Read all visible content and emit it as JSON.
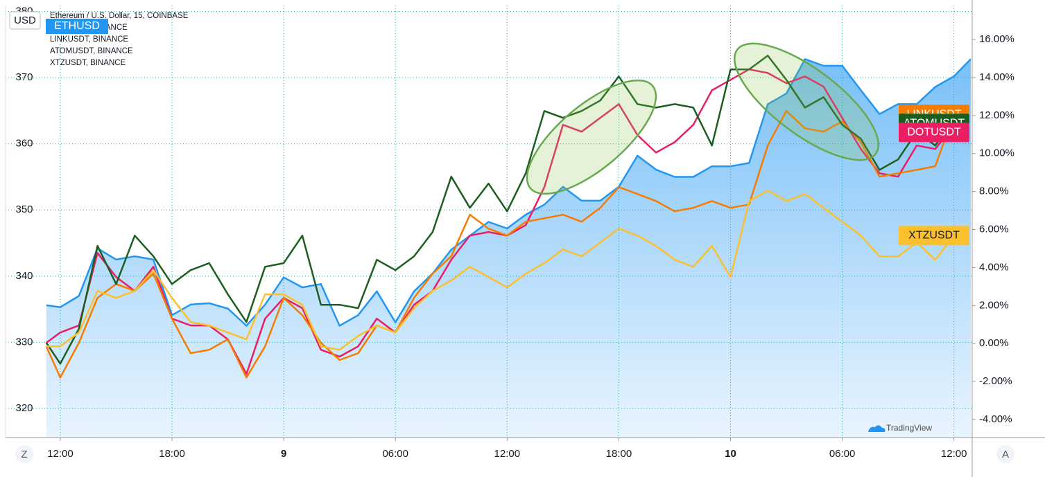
{
  "chart_data": {
    "type": "line",
    "ylabel": "USD",
    "ui": {
      "left_button": "Z",
      "right_button": "A",
      "watermark": "TradingView"
    },
    "x": [
      -0.75,
      0,
      1,
      2,
      3,
      4,
      5,
      6,
      7,
      8,
      9,
      10,
      11,
      12,
      13,
      14,
      15,
      16,
      17,
      18,
      19,
      20,
      21,
      22,
      23,
      24,
      25,
      26,
      27,
      28,
      29,
      30,
      31,
      32,
      33,
      34,
      35,
      36,
      37,
      38,
      39,
      40,
      41,
      42,
      43,
      44,
      45,
      46,
      47,
      48,
      48.9
    ],
    "xlim": [
      -2.94,
      48.98
    ],
    "xticks": [
      {
        "value": 0,
        "label": "12:00"
      },
      {
        "value": 6,
        "label": "18:00"
      },
      {
        "value": 12,
        "label": "9"
      },
      {
        "value": 18,
        "label": "06:00"
      },
      {
        "value": 24,
        "label": "12:00"
      },
      {
        "value": 30,
        "label": "18:00"
      },
      {
        "value": 36,
        "label": "10"
      },
      {
        "value": 42,
        "label": "06:00"
      },
      {
        "value": 48,
        "label": "12:00"
      }
    ],
    "ylim": [
      315.6,
      380.9
    ],
    "yticks": [
      320,
      330,
      340,
      350,
      360,
      370,
      380
    ],
    "y2lim": [
      -4.95,
      17.79
    ],
    "y2ticks": [
      {
        "value": -4,
        "label": "-4.00%"
      },
      {
        "value": -2,
        "label": "-2.00%"
      },
      {
        "value": 0,
        "label": "0.00%"
      },
      {
        "value": 2,
        "label": "2.00%"
      },
      {
        "value": 4,
        "label": "4.00%"
      },
      {
        "value": 6,
        "label": "6.00%"
      },
      {
        "value": 8,
        "label": "8.00%"
      },
      {
        "value": 10,
        "label": "10.00%"
      },
      {
        "value": 12,
        "label": "12.00%"
      },
      {
        "value": 14,
        "label": "14.00%"
      },
      {
        "value": 16,
        "label": "16.00%"
      }
    ],
    "grid": true,
    "series": [
      {
        "name": "ETHUSD",
        "legend": "Ethereum / U.S. Dollar, 15, COINBASE",
        "color": "#2196f3",
        "area": true,
        "values": [
          335.6,
          335.3,
          337.0,
          344.2,
          342.5,
          343.0,
          342.5,
          334.1,
          335.7,
          335.9,
          335.1,
          332.5,
          335.7,
          339.8,
          338.3,
          338.8,
          332.5,
          334.1,
          337.7,
          333.0,
          337.7,
          340.4,
          344.0,
          346.1,
          348.2,
          347.2,
          349.3,
          350.8,
          353.5,
          351.4,
          351.4,
          353.5,
          358.2,
          356.1,
          355.0,
          355.0,
          356.6,
          356.6,
          357.1,
          366.0,
          367.6,
          372.8,
          371.8,
          371.8,
          368.1,
          364.5,
          366.0,
          366.0,
          368.6,
          370.2,
          372.8
        ]
      },
      {
        "name": "DOTUSDT",
        "legend": "DOTUSDT, BINANCE",
        "color": "#e91e63",
        "axis": "y2",
        "values": [
          0.04,
          0.58,
          0.95,
          4.77,
          3.5,
          2.77,
          4.04,
          1.31,
          0.95,
          0.95,
          0.22,
          -1.6,
          1.31,
          2.4,
          1.86,
          -0.33,
          -0.69,
          -0.15,
          1.31,
          0.58,
          2.04,
          2.77,
          4.41,
          5.68,
          5.87,
          5.68,
          6.23,
          8.23,
          11.51,
          11.15,
          11.88,
          12.6,
          10.97,
          10.05,
          10.6,
          11.51,
          13.33,
          13.88,
          14.43,
          14.24,
          13.7,
          14.06,
          13.52,
          11.88,
          10.24,
          8.96,
          8.78,
          10.42,
          10.24,
          11.51,
          null
        ]
      },
      {
        "name": "LINKUSDT",
        "legend": "LINKUSDT, BINANCE",
        "color": "#f57c00",
        "axis": "y2",
        "values": [
          -0.15,
          -1.79,
          0.04,
          2.4,
          3.13,
          2.77,
          3.68,
          1.31,
          -0.51,
          -0.33,
          0.22,
          -1.79,
          -0.15,
          2.4,
          1.49,
          0.04,
          -0.87,
          -0.51,
          0.95,
          0.58,
          2.4,
          3.68,
          4.59,
          6.78,
          6.05,
          5.68,
          6.41,
          6.59,
          6.78,
          6.41,
          7.14,
          8.23,
          7.87,
          7.5,
          6.96,
          7.14,
          7.5,
          7.14,
          7.32,
          10.42,
          12.24,
          11.33,
          11.15,
          11.69,
          10.6,
          8.78,
          8.96,
          9.14,
          9.33,
          12.06,
          null
        ]
      },
      {
        "name": "ATOMUSDT",
        "legend": "ATOMUSDT, BINANCE",
        "color": "#1b5e20",
        "axis": "y2",
        "values": [
          0.04,
          -1.06,
          0.77,
          5.14,
          3.13,
          5.68,
          4.59,
          3.13,
          3.86,
          4.23,
          2.59,
          1.13,
          4.04,
          4.23,
          5.68,
          2.04,
          2.04,
          1.86,
          4.41,
          3.86,
          4.59,
          5.87,
          8.78,
          7.14,
          8.42,
          6.96,
          8.96,
          12.24,
          11.88,
          12.24,
          12.79,
          14.06,
          12.6,
          12.42,
          12.6,
          12.42,
          10.42,
          14.43,
          14.43,
          15.15,
          13.88,
          12.42,
          12.97,
          11.51,
          10.78,
          9.14,
          9.69,
          11.15,
          10.42,
          11.88,
          null
        ]
      },
      {
        "name": "XTZUSDT",
        "legend": "XTZUSDT, BINANCE",
        "color": "#fbc02d",
        "axis": "y2",
        "values": [
          -0.15,
          -0.15,
          0.58,
          2.77,
          2.4,
          2.77,
          3.86,
          2.4,
          1.13,
          0.95,
          0.58,
          0.22,
          2.59,
          2.59,
          2.04,
          -0.15,
          -0.33,
          0.4,
          0.95,
          0.58,
          1.86,
          2.77,
          3.32,
          4.04,
          3.5,
          2.95,
          3.68,
          4.23,
          4.95,
          4.59,
          5.32,
          6.05,
          5.68,
          5.14,
          4.41,
          4.04,
          5.14,
          3.5,
          7.5,
          8.05,
          7.5,
          7.87,
          7.14,
          6.41,
          5.68,
          4.59,
          4.59,
          5.32,
          4.41,
          5.68,
          null
        ]
      }
    ]
  }
}
